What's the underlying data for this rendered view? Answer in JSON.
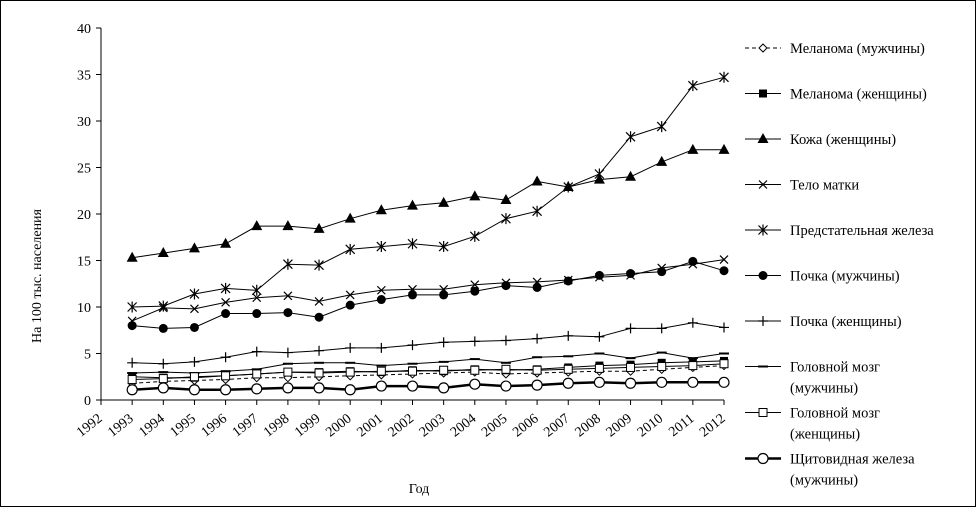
{
  "chart_data": {
    "type": "line",
    "title": "",
    "xlabel": "Год",
    "ylabel": "На 100 тыс. населения",
    "ylim": [
      0,
      40
    ],
    "yticks": [
      0,
      5,
      10,
      15,
      20,
      25,
      30,
      35,
      40
    ],
    "grid": false,
    "legend_position": "right",
    "categories": [
      "1992",
      "1993",
      "1994",
      "1995",
      "1996",
      "1997",
      "1998",
      "1999",
      "2000",
      "2001",
      "2002",
      "2003",
      "2004",
      "2005",
      "2006",
      "2007",
      "2008",
      "2009",
      "2010",
      "2011",
      "2012"
    ],
    "series": [
      {
        "name": "Меланома (мужчины)",
        "line": "dashed",
        "marker": "diamond-open",
        "values": [
          null,
          1.8,
          2.0,
          2.1,
          2.2,
          2.4,
          2.4,
          2.5,
          2.6,
          2.7,
          2.8,
          2.9,
          3.0,
          2.8,
          2.9,
          3.0,
          3.1,
          3.1,
          3.3,
          3.5,
          3.7
        ]
      },
      {
        "name": "Меланома (женщины)",
        "line": "solid",
        "marker": "square-filled",
        "values": [
          null,
          2.5,
          2.4,
          2.4,
          2.6,
          2.8,
          3.0,
          3.0,
          3.1,
          3.0,
          3.2,
          3.1,
          3.3,
          3.2,
          3.3,
          3.5,
          3.7,
          3.8,
          4.0,
          4.1,
          4.2
        ]
      },
      {
        "name": "Кожа (женщины)",
        "line": "solid",
        "marker": "triangle-filled",
        "values": [
          null,
          15.3,
          15.8,
          16.3,
          16.8,
          18.7,
          18.7,
          18.4,
          19.5,
          20.4,
          20.9,
          21.2,
          21.9,
          21.5,
          23.5,
          22.9,
          23.7,
          24.0,
          25.6,
          26.9,
          26.9
        ]
      },
      {
        "name": "Тело матки",
        "line": "solid",
        "marker": "x",
        "values": [
          null,
          8.5,
          9.9,
          9.8,
          10.5,
          11.0,
          11.2,
          10.6,
          11.3,
          11.8,
          11.9,
          11.9,
          12.4,
          12.6,
          12.7,
          12.9,
          13.2,
          13.4,
          14.2,
          14.6,
          15.1
        ]
      },
      {
        "name": "Предстательная железа",
        "line": "solid",
        "marker": "asterisk",
        "values": [
          null,
          10.0,
          10.1,
          11.4,
          12.0,
          11.8,
          14.6,
          14.5,
          16.2,
          16.5,
          16.8,
          16.5,
          17.6,
          19.5,
          20.3,
          22.9,
          24.3,
          28.3,
          29.4,
          33.8,
          34.7
        ]
      },
      {
        "name": "Почка (мужчины)",
        "line": "solid",
        "marker": "circle-filled",
        "values": [
          null,
          8.0,
          7.7,
          7.8,
          9.3,
          9.3,
          9.4,
          8.9,
          10.2,
          10.8,
          11.3,
          11.3,
          11.7,
          12.3,
          12.1,
          12.8,
          13.4,
          13.6,
          13.8,
          14.9,
          13.9
        ]
      },
      {
        "name": "Почка (женщины)",
        "line": "solid",
        "marker": "plus",
        "values": [
          null,
          4.0,
          3.9,
          4.1,
          4.6,
          5.2,
          5.1,
          5.3,
          5.6,
          5.6,
          5.9,
          6.2,
          6.3,
          6.4,
          6.6,
          6.9,
          6.8,
          7.7,
          7.7,
          8.3,
          7.8
        ]
      },
      {
        "name": "Головной мозг (мужчины)",
        "line": "solid",
        "marker": "dash",
        "values": [
          null,
          2.9,
          3.0,
          2.9,
          3.1,
          3.3,
          3.9,
          4.0,
          4.0,
          3.7,
          3.9,
          4.1,
          4.4,
          4.0,
          4.6,
          4.7,
          5.0,
          4.5,
          5.1,
          4.5,
          5.0
        ]
      },
      {
        "name": "Головной мозг (женщины)",
        "line": "solid",
        "marker": "square-open",
        "values": [
          null,
          2.2,
          2.3,
          2.5,
          2.6,
          2.8,
          3.0,
          2.9,
          3.0,
          3.1,
          3.1,
          3.2,
          3.2,
          3.3,
          3.2,
          3.3,
          3.4,
          3.5,
          3.6,
          3.7,
          3.9
        ]
      },
      {
        "name": "Щитовидная железа (мужчины)",
        "line": "bold",
        "marker": "circle-open",
        "values": [
          null,
          1.1,
          1.3,
          1.1,
          1.1,
          1.2,
          1.3,
          1.3,
          1.1,
          1.5,
          1.5,
          1.3,
          1.7,
          1.5,
          1.6,
          1.8,
          1.9,
          1.8,
          1.9,
          1.9,
          1.9
        ]
      }
    ]
  }
}
